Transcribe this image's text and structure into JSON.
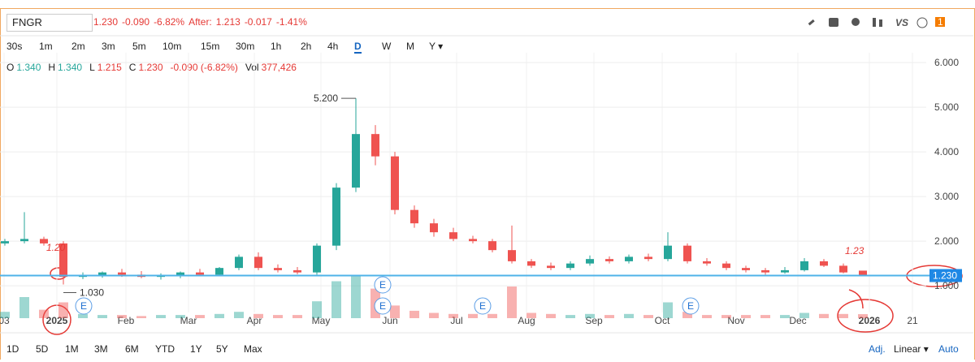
{
  "header": {
    "symbol": "FNGR",
    "quote": [
      "1.230",
      "-0.090",
      "-6.82%",
      "After:",
      "1.213",
      "-0.017",
      "-1.41%"
    ],
    "tools": {
      "vs": "VS",
      "badge": "1"
    }
  },
  "intervals": [
    "30s",
    "1m",
    "2m",
    "3m",
    "5m",
    "10m",
    "15m",
    "30m",
    "1h",
    "2h",
    "4h",
    "D",
    "W",
    "M",
    "Y ▾"
  ],
  "ohlc": [
    [
      "O",
      "1.340"
    ],
    [
      "H",
      "1.340"
    ],
    [
      "L",
      "1.215"
    ],
    [
      "C",
      "1.230"
    ],
    [
      "",
      "-0.090 (-6.82%)"
    ],
    [
      "Vol",
      "377,426"
    ]
  ],
  "chart_data": {
    "type": "candlestick",
    "up_color": "#26a69a",
    "down_color": "#ef5350",
    "grid": true,
    "open": [
      1.95,
      2.0,
      2.05,
      1.95,
      1.2,
      1.22,
      1.3,
      1.25,
      1.2,
      1.22,
      1.3,
      1.25,
      1.4,
      1.65,
      1.4,
      1.35,
      1.3,
      1.9,
      3.2,
      4.4,
      3.9,
      2.7,
      2.4,
      2.2,
      2.05,
      2.0,
      1.8,
      1.55,
      1.45,
      1.4,
      1.5,
      1.6,
      1.55,
      1.65,
      1.6,
      1.9,
      1.55,
      1.5,
      1.4,
      1.35,
      1.3,
      1.35,
      1.55,
      1.45,
      1.34
    ],
    "high": [
      2.05,
      2.65,
      2.1,
      2.0,
      1.3,
      1.32,
      1.38,
      1.33,
      1.28,
      1.32,
      1.38,
      1.42,
      1.7,
      1.75,
      1.48,
      1.42,
      1.95,
      3.3,
      5.2,
      4.6,
      4.0,
      2.8,
      2.5,
      2.3,
      2.12,
      2.05,
      2.35,
      1.6,
      1.52,
      1.55,
      1.68,
      1.66,
      1.7,
      1.72,
      2.2,
      1.95,
      1.62,
      1.55,
      1.45,
      1.4,
      1.42,
      1.62,
      1.6,
      1.5,
      1.34
    ],
    "low": [
      1.9,
      1.95,
      1.9,
      1.03,
      1.15,
      1.18,
      1.2,
      1.17,
      1.14,
      1.17,
      1.22,
      1.22,
      1.35,
      1.35,
      1.3,
      1.26,
      1.25,
      1.8,
      3.1,
      3.7,
      2.6,
      2.3,
      2.1,
      2.0,
      1.95,
      1.75,
      1.5,
      1.4,
      1.35,
      1.35,
      1.45,
      1.5,
      1.5,
      1.55,
      1.55,
      1.5,
      1.45,
      1.35,
      1.3,
      1.25,
      1.27,
      1.32,
      1.42,
      1.28,
      1.215
    ],
    "close": [
      2.0,
      2.05,
      1.95,
      1.2,
      1.22,
      1.3,
      1.25,
      1.2,
      1.22,
      1.3,
      1.25,
      1.4,
      1.65,
      1.4,
      1.35,
      1.3,
      1.9,
      3.2,
      4.4,
      3.9,
      2.7,
      2.4,
      2.2,
      2.05,
      2.0,
      1.8,
      1.55,
      1.45,
      1.4,
      1.5,
      1.6,
      1.55,
      1.65,
      1.6,
      1.9,
      1.55,
      1.5,
      1.4,
      1.35,
      1.3,
      1.35,
      1.55,
      1.45,
      1.3,
      1.23
    ],
    "volume": [
      0.6,
      2.0,
      0.8,
      1.5,
      0.4,
      0.3,
      0.3,
      0.2,
      0.3,
      0.3,
      0.3,
      0.4,
      0.6,
      0.4,
      0.3,
      0.3,
      1.6,
      3.5,
      4.0,
      2.8,
      1.2,
      0.7,
      0.5,
      0.4,
      0.4,
      0.4,
      3.0,
      0.5,
      0.4,
      0.3,
      0.4,
      0.3,
      0.4,
      0.3,
      1.5,
      0.6,
      0.3,
      0.3,
      0.3,
      0.3,
      0.3,
      0.5,
      0.4,
      0.4,
      0.38
    ],
    "ylim": [
      0.13,
      6.13
    ],
    "yticks": [
      {
        "value": 1,
        "label": "1.000"
      },
      {
        "value": 2,
        "label": "2.000"
      },
      {
        "value": 3,
        "label": "3.000"
      },
      {
        "value": 4,
        "label": "4.000"
      },
      {
        "value": 5,
        "label": "5.000"
      },
      {
        "value": 6,
        "label": "6.000"
      }
    ],
    "xtick_labels": [
      "03",
      "2025",
      "Feb",
      "Mar",
      "Apr",
      "May",
      "Jun",
      "Jul",
      "Aug",
      "Sep",
      "Oct",
      "Nov",
      "Dec",
      "2026",
      "21"
    ],
    "high_marker": {
      "value": 5.2,
      "label": "5.200"
    },
    "low_marker": {
      "value": 1.03,
      "label": "1.030"
    },
    "last": {
      "value": 1.23,
      "label": "1.230"
    },
    "earnings": [
      "E",
      "E",
      "E",
      "E",
      "E"
    ],
    "annotations": [
      "1.20",
      "1.23"
    ]
  },
  "ranges": [
    "1D",
    "5D",
    "1M",
    "3M",
    "6M",
    "YTD",
    "1Y",
    "5Y",
    "Max"
  ],
  "footer": {
    "adj": "Adj.",
    "scale": "Linear ▾",
    "auto": "Auto"
  }
}
